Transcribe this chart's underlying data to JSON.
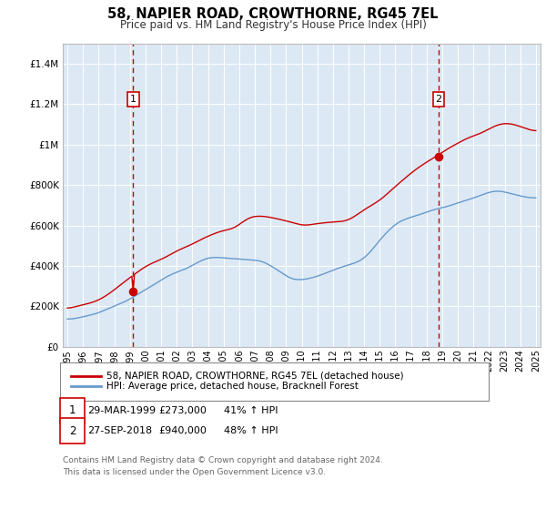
{
  "title": "58, NAPIER ROAD, CROWTHORNE, RG45 7EL",
  "subtitle": "Price paid vs. HM Land Registry's House Price Index (HPI)",
  "fig_bg_color": "#ffffff",
  "plot_bg_color": "#dce9f5",
  "legend_label_red": "58, NAPIER ROAD, CROWTHORNE, RG45 7EL (detached house)",
  "legend_label_blue": "HPI: Average price, detached house, Bracknell Forest",
  "footer": "Contains HM Land Registry data © Crown copyright and database right 2024.\nThis data is licensed under the Open Government Licence v3.0.",
  "marker1_price": 273000,
  "marker2_price": 940000,
  "marker1_year": 1999.21,
  "marker2_year": 2018.75,
  "red_line_color": "#cc0000",
  "blue_line_color": "#6699cc",
  "dashed_line_color": "#cc0000",
  "grid_color": "#ffffff",
  "ylim": [
    0,
    1500000
  ],
  "xlim_min": 1994.7,
  "xlim_max": 2025.3
}
